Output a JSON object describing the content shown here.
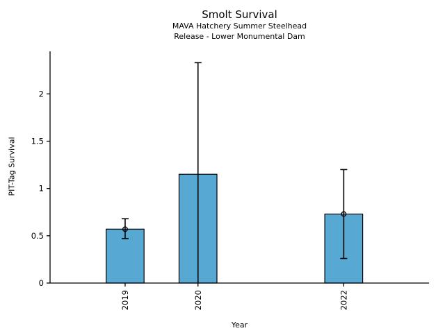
{
  "chart_data": {
    "type": "bar",
    "title": "Smolt Survival",
    "subtitle": [
      "MAVA Hatchery Summer Steelhead",
      "Release - Lower Monumental Dam"
    ],
    "xlabel": "Year",
    "ylabel": "PIT-Tag Survival",
    "categories": [
      "2019",
      "2020",
      "2022"
    ],
    "x": [
      2019,
      2020,
      2022
    ],
    "values": [
      0.57,
      1.15,
      0.73
    ],
    "error_low": [
      0.47,
      0,
      0.26
    ],
    "error_high": [
      0.68,
      2.33,
      1.2
    ],
    "error_low_clipped": [
      false,
      true,
      false
    ],
    "marker_visible": [
      true,
      false,
      true
    ],
    "yticks": [
      0,
      0.5,
      1,
      1.5,
      2
    ],
    "ytick_labels": [
      "0",
      "0.5",
      "1",
      "1.5",
      "2"
    ],
    "xlim": [
      2017.97,
      2023.17
    ],
    "ylim": [
      0,
      2.45
    ],
    "bar_width_years": 0.52,
    "bar_color": "#57a9d3",
    "bar_edge_color": "#000000",
    "axis_color": "#000000",
    "grid": false,
    "legend": null
  }
}
